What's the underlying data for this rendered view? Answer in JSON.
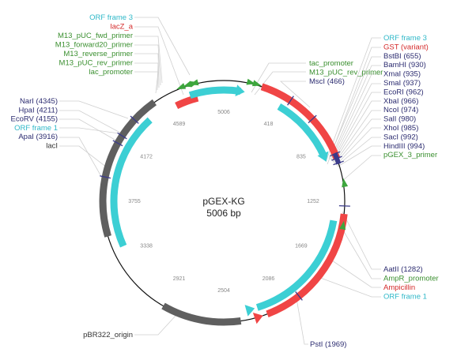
{
  "plasmid": {
    "name": "pGEX-KG",
    "size_label": "5006 bp",
    "length": 5006
  },
  "colors": {
    "cyan": "#3ccfd4",
    "red": "#f04545",
    "gray": "#5f5f5f",
    "green": "#3da63d",
    "site": "#3a3a8a",
    "label_cyan": "#2fb8c8",
    "label_red": "#d42a2a",
    "label_green": "#3a8f2f",
    "label_site": "#2c2c70",
    "label_dark": "#333333"
  },
  "ticks": [
    "5006",
    "418",
    "835",
    "1252",
    "1669",
    "2086",
    "2504",
    "2921",
    "3338",
    "3755",
    "4172",
    "4589"
  ],
  "labels_left": [
    {
      "id": "orf3-left",
      "text": "ORF frame 3",
      "color": "label_cyan"
    },
    {
      "id": "lacz",
      "text": "lacZ_a",
      "color": "label_red"
    },
    {
      "id": "m13-fwd",
      "text": "M13_pUC_fwd_primer",
      "color": "label_green"
    },
    {
      "id": "m13-f20",
      "text": "M13_forward20_primer",
      "color": "label_green"
    },
    {
      "id": "m13-rev",
      "text": "M13_reverse_primer",
      "color": "label_green"
    },
    {
      "id": "m13-puc-rev-left",
      "text": "M13_pUC_rev_primer",
      "color": "label_green"
    },
    {
      "id": "lac-promoter-left",
      "text": "lac_promoter",
      "color": "label_green"
    },
    {
      "id": "nari",
      "text": "NarI (4345)",
      "color": "label_site"
    },
    {
      "id": "hpai",
      "text": "HpaI (4211)",
      "color": "label_site"
    },
    {
      "id": "ecorv",
      "text": "EcoRV (4155)",
      "color": "label_site"
    },
    {
      "id": "orf1-left",
      "text": "ORF frame 1",
      "color": "label_cyan"
    },
    {
      "id": "apai",
      "text": "ApaI (3916)",
      "color": "label_site"
    },
    {
      "id": "laci",
      "text": "lacI",
      "color": "label_dark"
    },
    {
      "id": "pbr322",
      "text": "pBR322_origin",
      "color": "label_dark"
    }
  ],
  "labels_mid": [
    {
      "id": "tac-promoter",
      "text": "tac_promoter",
      "color": "label_green"
    },
    {
      "id": "m13-puc-rev-mid",
      "text": "M13_pUC_rev_primer",
      "color": "label_green"
    },
    {
      "id": "msci",
      "text": "MscI (466)",
      "color": "label_site"
    }
  ],
  "labels_right": [
    {
      "id": "orf3-right",
      "text": "ORF frame 3",
      "color": "label_cyan"
    },
    {
      "id": "gst",
      "text": "GST (variant)",
      "color": "label_red"
    },
    {
      "id": "bstbi",
      "text": "BstBI (655)",
      "color": "label_site"
    },
    {
      "id": "bamhi",
      "text": "BamHI (930)",
      "color": "label_site"
    },
    {
      "id": "xmai",
      "text": "XmaI (935)",
      "color": "label_site"
    },
    {
      "id": "smai",
      "text": "SmaI (937)",
      "color": "label_site"
    },
    {
      "id": "ecori",
      "text": "EcoRI (962)",
      "color": "label_site"
    },
    {
      "id": "xbai",
      "text": "XbaI (966)",
      "color": "label_site"
    },
    {
      "id": "ncoi",
      "text": "NcoI (974)",
      "color": "label_site"
    },
    {
      "id": "sali",
      "text": "SalI (980)",
      "color": "label_site"
    },
    {
      "id": "xhoi",
      "text": "XhoI (985)",
      "color": "label_site"
    },
    {
      "id": "saci",
      "text": "SacI (992)",
      "color": "label_site"
    },
    {
      "id": "hindiii",
      "text": "HindIII (994)",
      "color": "label_site"
    },
    {
      "id": "pgex3",
      "text": "pGEX_3_primer",
      "color": "label_green"
    }
  ],
  "labels_bottom_right": [
    {
      "id": "aatii",
      "text": "AatII (1282)",
      "color": "label_site"
    },
    {
      "id": "ampr-promoter",
      "text": "AmpR_promoter",
      "color": "label_green"
    },
    {
      "id": "ampicillin",
      "text": "Ampicillin",
      "color": "label_red"
    },
    {
      "id": "orf1-right",
      "text": "ORF frame 1",
      "color": "label_cyan"
    },
    {
      "id": "psti",
      "text": "PstI (1969)",
      "color": "label_site"
    }
  ]
}
